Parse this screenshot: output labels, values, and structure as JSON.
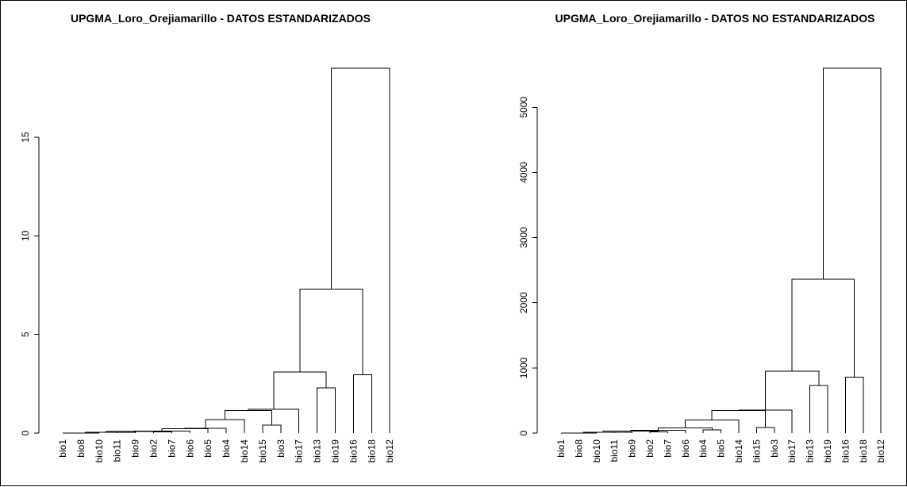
{
  "chart_data": [
    {
      "type": "dendrogram",
      "title": "UPGMA_Loro_Orejiamarillo - DATOS ESTANDARIZADOS",
      "xlabel": "",
      "ylabel": "",
      "ylim": [
        0,
        18.5
      ],
      "yticks": [
        0,
        5,
        10,
        15
      ],
      "leaves": [
        "bio1",
        "bio8",
        "bio10",
        "bio11",
        "bio9",
        "bio2",
        "bio7",
        "bio6",
        "bio5",
        "bio4",
        "bio14",
        "bio15",
        "bio3",
        "bio17",
        "bio13",
        "bio19",
        "bio16",
        "bio18",
        "bio12"
      ],
      "merges": [
        {
          "a": "bio1",
          "b": "bio8",
          "h": 0.0
        },
        {
          "a": "m1",
          "b": "bio10",
          "h": 0.01
        },
        {
          "a": "bio11",
          "b": "bio9",
          "h": 0.04
        },
        {
          "a": "m2",
          "b": "m3",
          "h": 0.05
        },
        {
          "a": "bio2",
          "b": "bio7",
          "h": 0.07
        },
        {
          "a": "m4",
          "b": "m5",
          "h": 0.09
        },
        {
          "a": "m6",
          "b": "bio6",
          "h": 0.11
        },
        {
          "a": "m7",
          "b": "bio5",
          "h": 0.22
        },
        {
          "a": "m8",
          "b": "bio4",
          "h": 0.25
        },
        {
          "a": "m9",
          "b": "bio14",
          "h": 0.68
        },
        {
          "a": "bio15",
          "b": "bio3",
          "h": 0.4
        },
        {
          "a": "m10",
          "b": "m11",
          "h": 1.15
        },
        {
          "a": "m12",
          "b": "bio17",
          "h": 1.2
        },
        {
          "a": "bio13",
          "b": "bio19",
          "h": 2.3
        },
        {
          "a": "m13",
          "b": "m14",
          "h": 3.1
        },
        {
          "a": "bio16",
          "b": "bio18",
          "h": 2.95
        },
        {
          "a": "m15",
          "b": "m16",
          "h": 7.3
        },
        {
          "a": "m17",
          "b": "bio12",
          "h": 18.5
        }
      ]
    },
    {
      "type": "dendrogram",
      "title": "UPGMA_Loro_Orejiamarillo - DATOS NO ESTANDARIZADOS",
      "xlabel": "",
      "ylabel": "",
      "ylim": [
        0,
        5600
      ],
      "yticks": [
        0,
        1000,
        2000,
        3000,
        4000,
        5000
      ],
      "leaves": [
        "bio1",
        "bio8",
        "bio10",
        "bio11",
        "bio9",
        "bio2",
        "bio7",
        "bio6",
        "bio4",
        "bio5",
        "bio14",
        "bio15",
        "bio3",
        "bio17",
        "bio13",
        "bio19",
        "bio16",
        "bio18",
        "bio12"
      ],
      "merges": [
        {
          "a": "bio1",
          "b": "bio8",
          "h": 0
        },
        {
          "a": "m1",
          "b": "bio10",
          "h": 3
        },
        {
          "a": "bio11",
          "b": "bio9",
          "h": 12
        },
        {
          "a": "m2",
          "b": "m3",
          "h": 15
        },
        {
          "a": "bio2",
          "b": "bio7",
          "h": 20
        },
        {
          "a": "m4",
          "b": "m5",
          "h": 28
        },
        {
          "a": "m6",
          "b": "bio6",
          "h": 45
        },
        {
          "a": "bio4",
          "b": "bio5",
          "h": 50
        },
        {
          "a": "m7",
          "b": "m8",
          "h": 80
        },
        {
          "a": "m9",
          "b": "bio14",
          "h": 200
        },
        {
          "a": "bio15",
          "b": "bio3",
          "h": 85
        },
        {
          "a": "m10",
          "b": "m11",
          "h": 350
        },
        {
          "a": "m12",
          "b": "bio17",
          "h": 355
        },
        {
          "a": "bio13",
          "b": "bio19",
          "h": 730
        },
        {
          "a": "m13",
          "b": "m14",
          "h": 950
        },
        {
          "a": "bio16",
          "b": "bio18",
          "h": 860
        },
        {
          "a": "m15",
          "b": "m16",
          "h": 2360
        },
        {
          "a": "m17",
          "b": "bio12",
          "h": 5600
        }
      ]
    }
  ],
  "colors": {
    "line": "#000000",
    "background": "#ffffff"
  }
}
